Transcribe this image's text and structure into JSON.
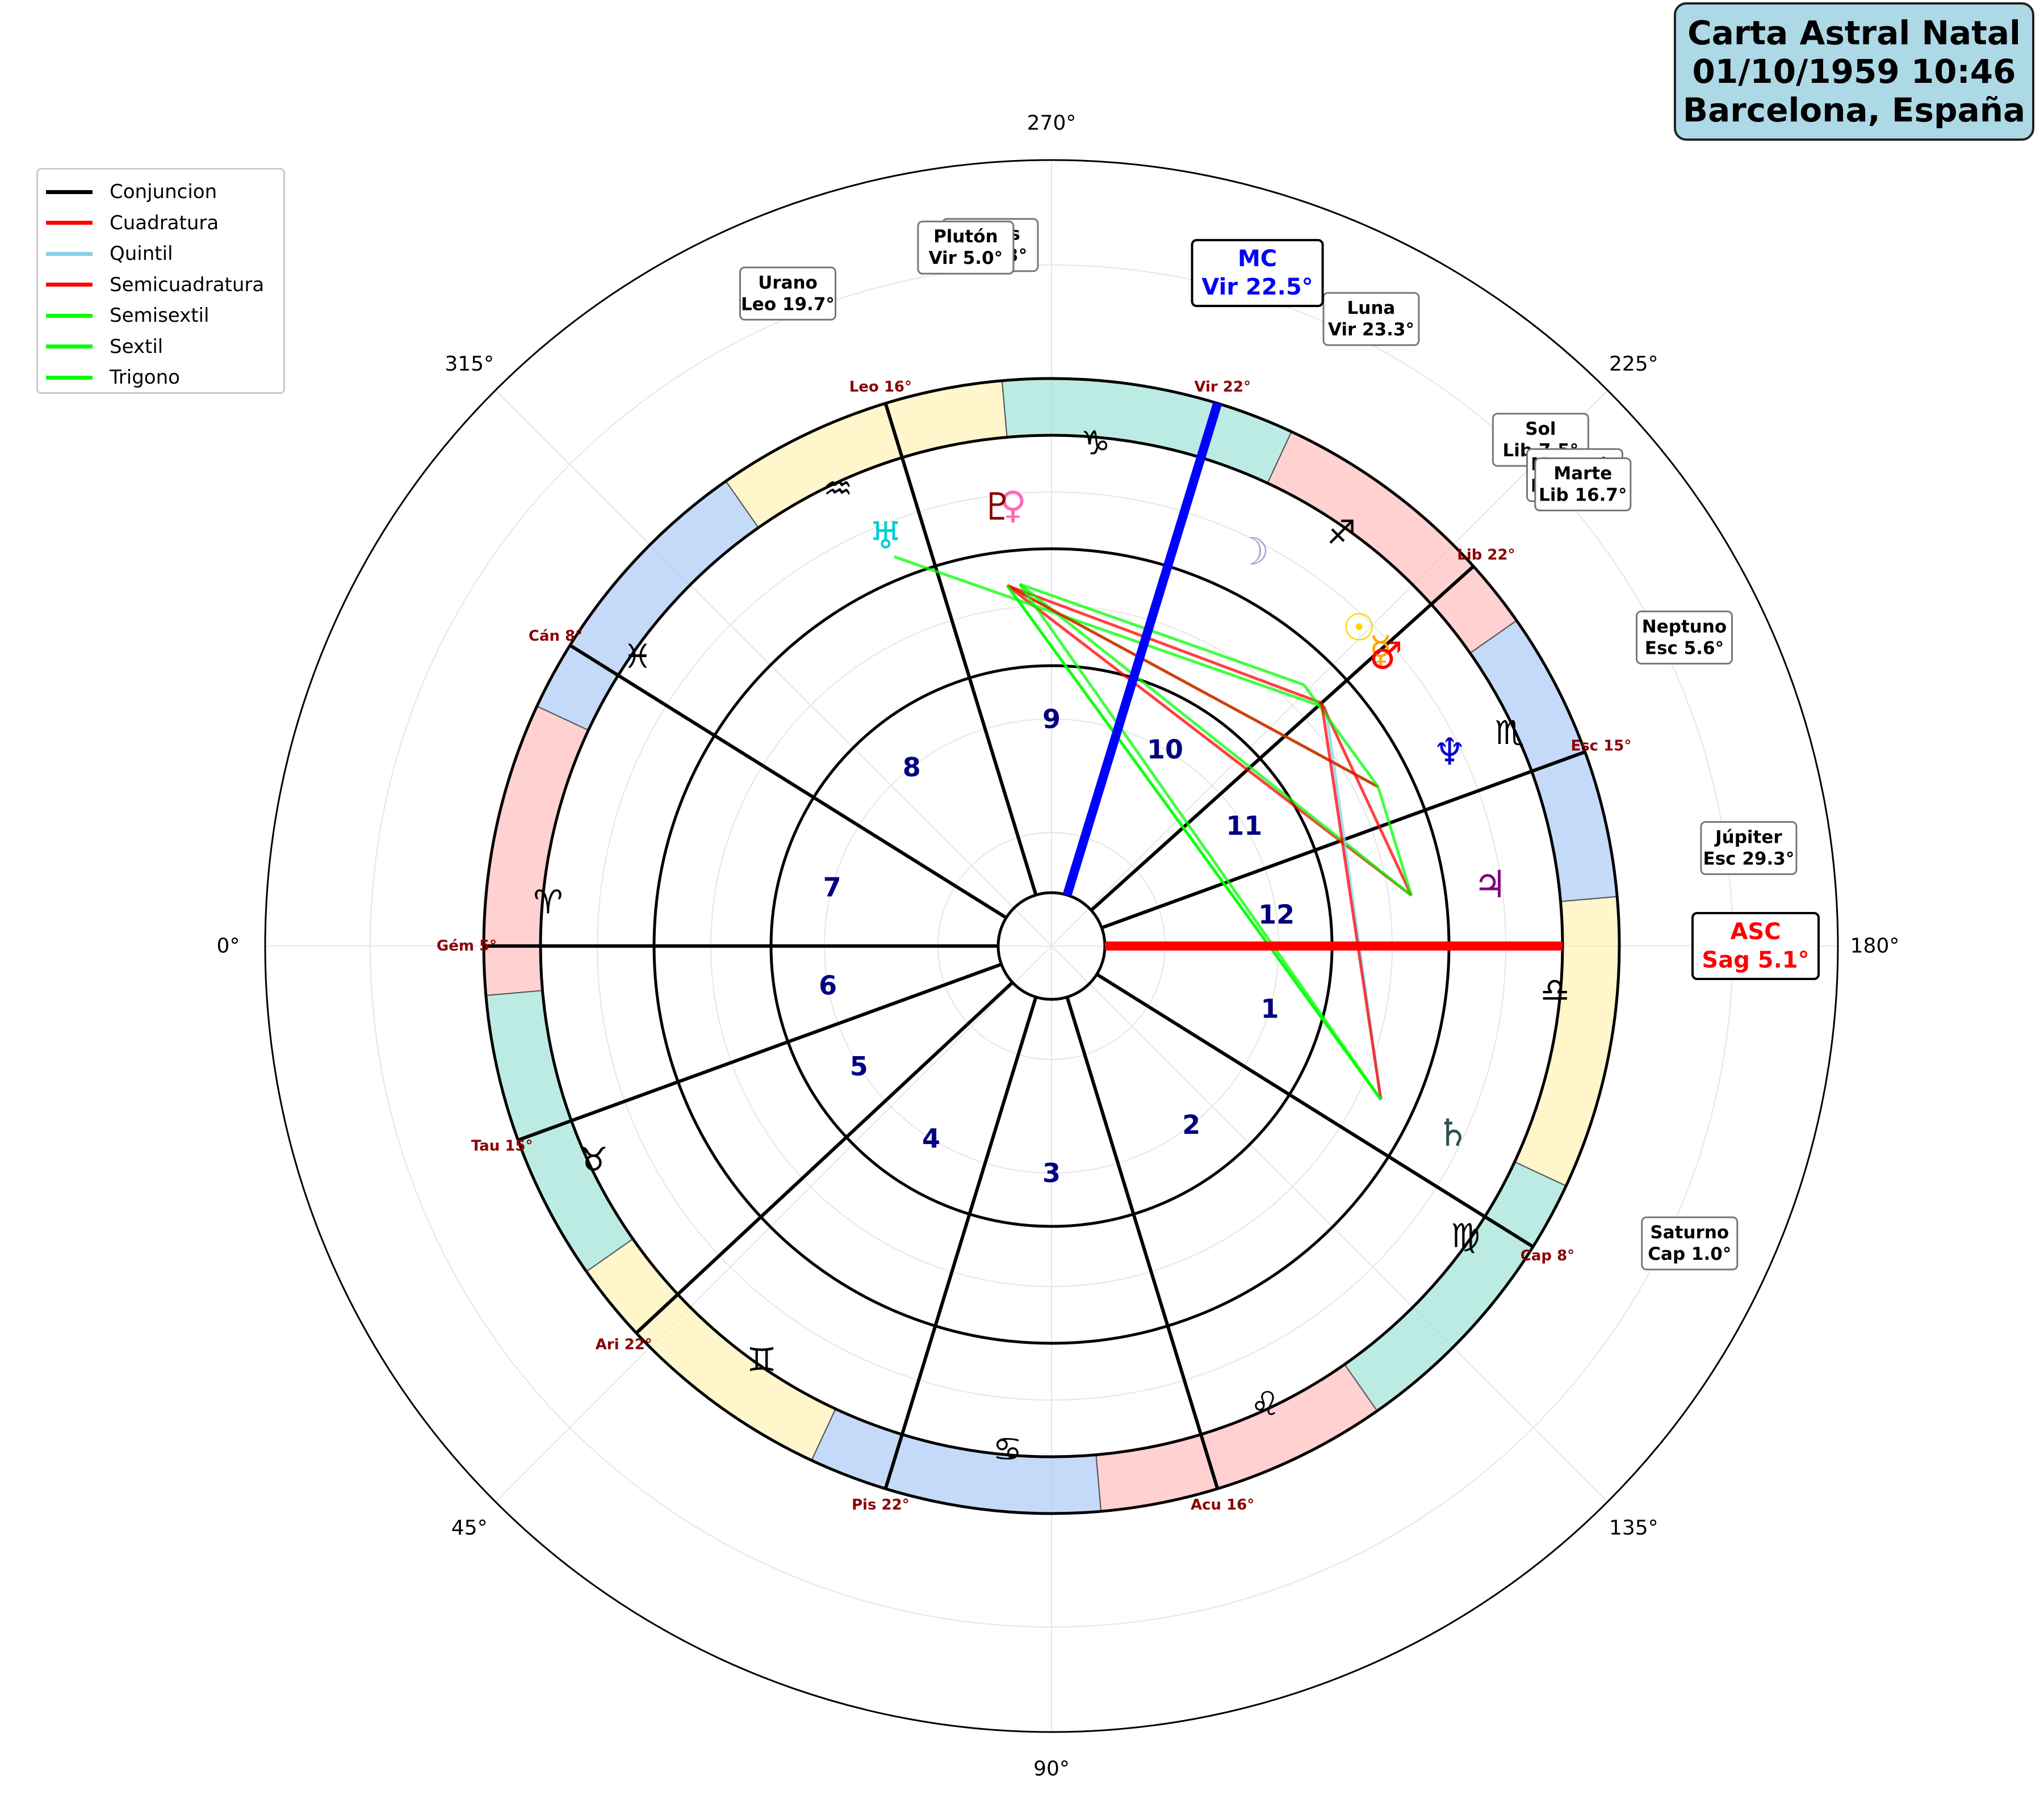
{
  "title": {
    "line1": "Carta Astral Natal",
    "line2": "01/10/1959 10:46",
    "line3": "Barcelona, España"
  },
  "legend": [
    {
      "label": "Conjuncion",
      "color": "#000000"
    },
    {
      "label": "Cuadratura",
      "color": "#ff0000"
    },
    {
      "label": "Quintil",
      "color": "#87ceeb"
    },
    {
      "label": "Semicuadratura",
      "color": "#ff0000"
    },
    {
      "label": "Semisextil",
      "color": "#00ff00"
    },
    {
      "label": "Sextil",
      "color": "#00ff00"
    },
    {
      "label": "Trigono",
      "color": "#00ff00"
    }
  ],
  "angle_labels": [
    "0°",
    "45°",
    "90°",
    "135°",
    "180°",
    "225°",
    "270°",
    "315°"
  ],
  "signs": [
    {
      "glyph": "♈",
      "color": "#ffb3b3"
    },
    {
      "glyph": "♉",
      "color": "#8fded2"
    },
    {
      "glyph": "♊",
      "color": "#fff0a8"
    },
    {
      "glyph": "♋",
      "color": "#9fc2f5"
    },
    {
      "glyph": "♌",
      "color": "#ffb3b3"
    },
    {
      "glyph": "♍",
      "color": "#8fded2"
    },
    {
      "glyph": "♎",
      "color": "#fff0a8"
    },
    {
      "glyph": "♏",
      "color": "#9fc2f5"
    },
    {
      "glyph": "♐",
      "color": "#ffb3b3"
    },
    {
      "glyph": "♑",
      "color": "#8fded2"
    },
    {
      "glyph": "♒",
      "color": "#fff0a8"
    },
    {
      "glyph": "♓",
      "color": "#9fc2f5"
    }
  ],
  "cusps": [
    {
      "angle": 0,
      "label": "Gém 5°"
    },
    {
      "angle": 20,
      "label": "Tau 15°"
    },
    {
      "angle": 43,
      "label": "Ari 22°"
    },
    {
      "angle": 73,
      "label": "Pis 22°"
    },
    {
      "angle": 107,
      "label": "Acu 16°"
    },
    {
      "angle": 148,
      "label": "Cap 8°"
    },
    {
      "angle": 200,
      "label": "Esc 15°"
    },
    {
      "angle": 222,
      "label": "Lib 22°"
    },
    {
      "angle": 253,
      "label": "Vir 22°"
    },
    {
      "angle": 287,
      "label": "Leo 16°"
    },
    {
      "angle": 328,
      "label": "Cán 8°"
    }
  ],
  "houses": [
    {
      "number": "1",
      "angle": 164
    },
    {
      "number": "2",
      "angle": 128
    },
    {
      "number": "3",
      "angle": 90
    },
    {
      "number": "4",
      "angle": 58
    },
    {
      "number": "5",
      "angle": 32
    },
    {
      "number": "6",
      "angle": 10
    },
    {
      "number": "7",
      "angle": 345
    },
    {
      "number": "8",
      "angle": 308
    },
    {
      "number": "9",
      "angle": 270
    },
    {
      "number": "10",
      "angle": 240
    },
    {
      "number": "11",
      "angle": 212
    },
    {
      "number": "12",
      "angle": 188
    }
  ],
  "asc": {
    "label": "ASC",
    "value": "Sag 5.1°",
    "color": "#ff0000",
    "angle": 180
  },
  "mc": {
    "label": "MC",
    "value": "Vir 22.5°",
    "color": "#0000ff",
    "angle": 253
  },
  "planets": [
    {
      "name": "Sol",
      "value": "Lib 7.5°",
      "glyph": "☉",
      "color": "#ffd700",
      "angle": 226
    },
    {
      "name": "Luna",
      "value": "Vir 23.3°",
      "glyph": "☽",
      "color": "#9aa4d4",
      "angle": 243
    },
    {
      "name": "Mercurio",
      "value": "Lib 17.0°",
      "glyph": "☿",
      "color": "#ffa500",
      "angle": 222
    },
    {
      "name": "Venus",
      "value": "Vir 1.3°",
      "glyph": "♀",
      "color": "#ff69b4",
      "angle": 275
    },
    {
      "name": "Marte",
      "value": "Lib 16.7°",
      "glyph": "♂",
      "color": "#ff0000",
      "angle": 221
    },
    {
      "name": "Júpiter",
      "value": "Esc 29.3°",
      "glyph": "♃",
      "color": "#800080",
      "angle": 188
    },
    {
      "name": "Saturno",
      "value": "Cap 1.0°",
      "glyph": "♄",
      "color": "#2f4f4f",
      "angle": 155
    },
    {
      "name": "Urano",
      "value": "Leo 19.7°",
      "glyph": "♅",
      "color": "#00ced1",
      "angle": 292
    },
    {
      "name": "Neptuno",
      "value": "Esc 5.6°",
      "glyph": "♆",
      "color": "#0000cd",
      "angle": 206
    },
    {
      "name": "Plutón",
      "value": "Vir 5.0°",
      "glyph": "♇",
      "color": "#8b0000",
      "angle": 277
    }
  ]
}
